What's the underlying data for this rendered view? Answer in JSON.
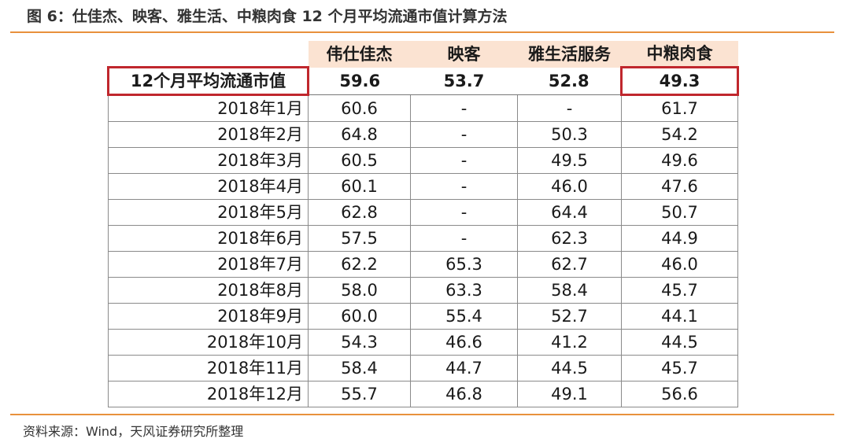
{
  "title": "图 6：仕佳杰、映客、雅生活、中粮肉食 12 个月平均流通市值计算方法",
  "source": "资料来源：Wind，天风证券研究所整理",
  "colors": {
    "accent_rule": "#e8913c",
    "header_fill": "#fbe3d2",
    "highlight_border": "#c0272d"
  },
  "table": {
    "columns": [
      "伟仕佳杰",
      "映客",
      "雅生活服务",
      "中粮肉食"
    ],
    "average": {
      "label": "12个月平均流通市值",
      "values": [
        "59.6",
        "53.7",
        "52.8",
        "49.3"
      ]
    },
    "rows": [
      {
        "month": "2018年1月",
        "values": [
          "60.6",
          "-",
          "-",
          "61.7"
        ]
      },
      {
        "month": "2018年2月",
        "values": [
          "64.8",
          "-",
          "50.3",
          "54.2"
        ]
      },
      {
        "month": "2018年3月",
        "values": [
          "60.5",
          "-",
          "49.5",
          "49.6"
        ]
      },
      {
        "month": "2018年4月",
        "values": [
          "60.1",
          "-",
          "46.0",
          "47.6"
        ]
      },
      {
        "month": "2018年5月",
        "values": [
          "62.8",
          "-",
          "64.4",
          "50.7"
        ]
      },
      {
        "month": "2018年6月",
        "values": [
          "57.5",
          "-",
          "62.3",
          "44.9"
        ]
      },
      {
        "month": "2018年7月",
        "values": [
          "62.2",
          "65.3",
          "62.7",
          "46.0"
        ]
      },
      {
        "month": "2018年8月",
        "values": [
          "58.0",
          "63.3",
          "58.4",
          "45.7"
        ]
      },
      {
        "month": "2018年9月",
        "values": [
          "60.0",
          "55.4",
          "52.7",
          "44.1"
        ]
      },
      {
        "month": "2018年10月",
        "values": [
          "54.3",
          "46.6",
          "41.2",
          "44.5"
        ]
      },
      {
        "month": "2018年11月",
        "values": [
          "58.4",
          "44.7",
          "44.5",
          "45.7"
        ]
      },
      {
        "month": "2018年12月",
        "values": [
          "55.7",
          "46.8",
          "49.1",
          "56.6"
        ]
      }
    ]
  }
}
